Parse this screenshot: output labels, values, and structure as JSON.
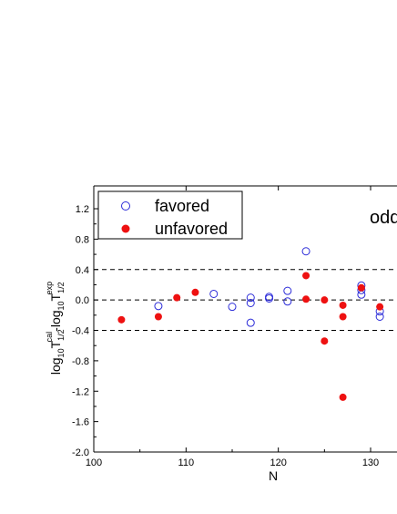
{
  "chart_data": {
    "type": "scatter",
    "xlabel": "N",
    "ylabel_parts": {
      "base1": "log",
      "sub1": "10",
      "mid1": "T",
      "sub2": "1/2",
      "sup2": "cal",
      "dash": "-log",
      "sub3": "10",
      "mid2": "T",
      "sub4": "1/2",
      "sup4": "exp"
    },
    "xlim": [
      100,
      132
    ],
    "ylim": [
      -2.0,
      1.5
    ],
    "xticks": [
      100,
      110,
      120,
      130
    ],
    "yticks": [
      -2.0,
      -1.6,
      -1.2,
      -0.8,
      -0.4,
      0.0,
      0.4,
      0.8,
      1.2
    ],
    "ytick_labels": [
      "-2.0",
      "-1.6",
      "-1.2",
      "-0.8",
      "-0.4",
      "0.0",
      "0.4",
      "0.8",
      "1.2"
    ],
    "reference_lines": [
      0.4,
      0.0,
      -0.4
    ],
    "annotation": "odd",
    "legend_position": "top-left",
    "series": [
      {
        "name": "favored",
        "marker": "open-circle",
        "color": "#2b2bd8",
        "points": [
          [
            107,
            -0.08
          ],
          [
            113,
            0.08
          ],
          [
            115,
            -0.09
          ],
          [
            117,
            0.03
          ],
          [
            117,
            -0.04
          ],
          [
            117,
            -0.3
          ],
          [
            119,
            0.02
          ],
          [
            119,
            0.04
          ],
          [
            121,
            0.12
          ],
          [
            121,
            -0.02
          ],
          [
            123,
            0.64
          ],
          [
            129,
            0.19
          ],
          [
            129,
            0.13
          ],
          [
            129,
            0.07
          ],
          [
            131,
            -0.15
          ],
          [
            131,
            -0.22
          ]
        ]
      },
      {
        "name": "unfavored",
        "marker": "filled-circle",
        "color": "#ee1111",
        "points": [
          [
            103,
            -0.26
          ],
          [
            107,
            -0.22
          ],
          [
            109,
            0.03
          ],
          [
            111,
            0.1
          ],
          [
            123,
            0.32
          ],
          [
            123,
            0.01
          ],
          [
            125,
            0.0
          ],
          [
            125,
            -0.54
          ],
          [
            127,
            -0.07
          ],
          [
            127,
            -0.22
          ],
          [
            127,
            -1.28
          ],
          [
            129,
            0.16
          ],
          [
            131,
            -0.09
          ]
        ]
      }
    ]
  }
}
